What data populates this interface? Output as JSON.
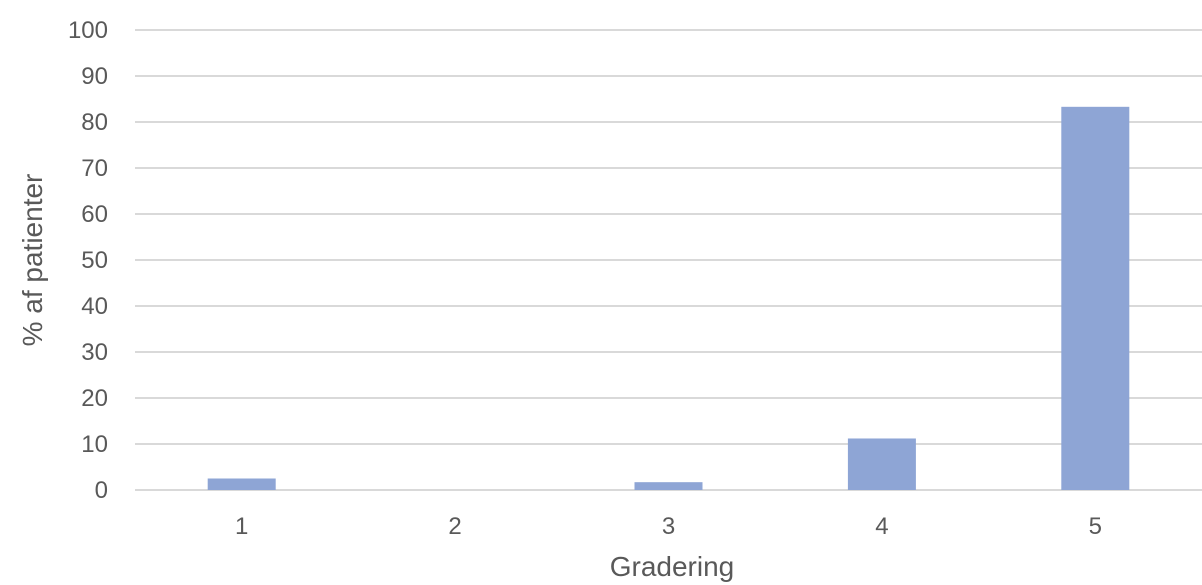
{
  "chart_data": {
    "type": "bar",
    "categories": [
      "1",
      "2",
      "3",
      "4",
      "5"
    ],
    "values": [
      2.5,
      0,
      1.7,
      11.2,
      83.3
    ],
    "title": "",
    "xlabel": "Gradering",
    "ylabel": "% af patienter",
    "ylim": [
      0,
      100
    ],
    "yticks": [
      0,
      10,
      20,
      30,
      40,
      50,
      60,
      70,
      80,
      90,
      100
    ],
    "grid": true,
    "legend": "none",
    "bar_color": "#8ea5d5",
    "gridline_color": "#d9d9d9",
    "text_color": "#595959"
  }
}
